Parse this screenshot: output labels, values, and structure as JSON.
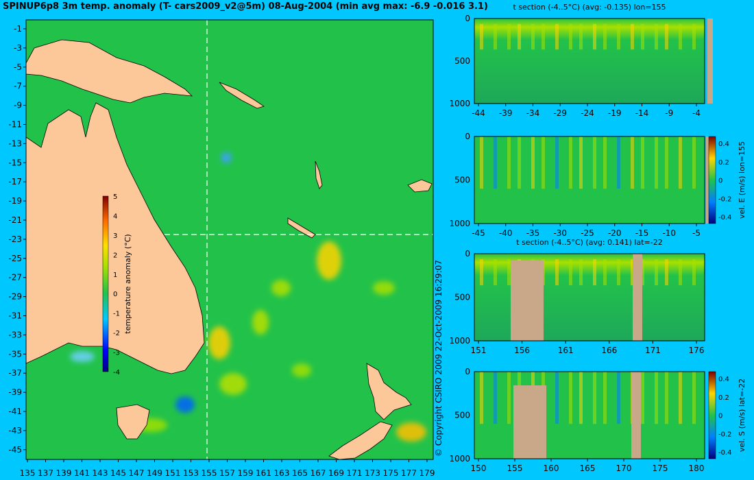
{
  "title": "SPINUP6p8 3m temp. anomaly (T- cars2009_v2@5m) 08-Aug-2004 (min avg max: -6.9 -0.016 3.1)",
  "copyright": "© Copyright CSIRO 2009  22-Oct-2009 16:29:07",
  "map": {
    "lat_ticks": [
      "-1",
      "-3",
      "-5",
      "-7",
      "-9",
      "-11",
      "-13",
      "-15",
      "-17",
      "-19",
      "-21",
      "-23",
      "-25",
      "-27",
      "-29",
      "-31",
      "-33",
      "-35",
      "-37",
      "-39",
      "-41",
      "-43",
      "-45"
    ],
    "lon_ticks": [
      "135",
      "137",
      "139",
      "141",
      "143",
      "145",
      "147",
      "149",
      "151",
      "153",
      "155",
      "157",
      "159",
      "161",
      "163",
      "165",
      "167",
      "169",
      "171",
      "173",
      "175",
      "177",
      "179"
    ],
    "colorbar_label": "temperature anomaly (°C)",
    "colorbar_ticks": [
      "5",
      "4",
      "3",
      "2",
      "1",
      "0",
      "-1",
      "-2",
      "-3",
      "-4"
    ],
    "section_lon": 155,
    "section_lat": -22
  },
  "panels": [
    {
      "title": "t section (-4..5°C) (avg: -0.135) lon=155",
      "depth_ticks": [
        "0",
        "500",
        "1000"
      ],
      "x_ticks": [
        "-44",
        "-39",
        "-34",
        "-29",
        "-24",
        "-19",
        "-14",
        "-9",
        "-4"
      ],
      "colorbar": null
    },
    {
      "title": "",
      "depth_ticks": [
        "0",
        "500",
        "1000"
      ],
      "x_ticks": [
        "-45",
        "-40",
        "-35",
        "-30",
        "-25",
        "-20",
        "-15",
        "-10",
        "-5"
      ],
      "colorbar": {
        "label": "vel. E (m/s) lon=155",
        "ticks": [
          "0.4",
          "0.2",
          "0",
          "-0.2",
          "-0.4"
        ]
      }
    },
    {
      "title": "t section (-4..5°C) (avg: 0.141) lat=-22",
      "depth_ticks": [
        "0",
        "500",
        "1000"
      ],
      "x_ticks": [
        "151",
        "156",
        "161",
        "166",
        "171",
        "176"
      ],
      "colorbar": null
    },
    {
      "title": "",
      "depth_ticks": [
        "0",
        "500",
        "1000"
      ],
      "x_ticks": [
        "150",
        "155",
        "160",
        "165",
        "170",
        "175",
        "180"
      ],
      "colorbar": {
        "label": "vel. S (m/s) lat=-22",
        "ticks": [
          "0.4",
          "0.2",
          "0",
          "-0.2",
          "-0.4"
        ]
      }
    }
  ],
  "colors": {
    "background": "#00c8ff",
    "ocean": "#22c24a",
    "land_map": "#fcc89a",
    "land_section": "#c8a888"
  }
}
